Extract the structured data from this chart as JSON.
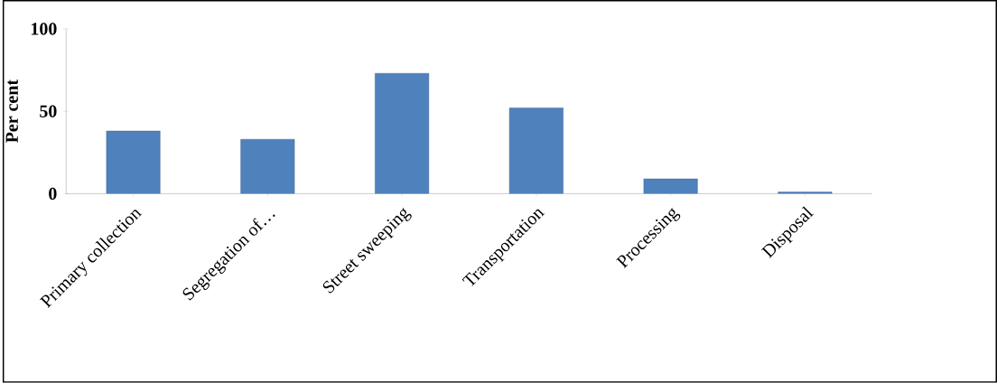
{
  "chart_data": {
    "type": "bar",
    "ylabel": "Per cent",
    "categories": [
      "Primary collection",
      "Segregation of…",
      "Street sweeping",
      "Transportation",
      "Processing",
      "Disposal"
    ],
    "values": [
      38,
      33,
      73,
      52,
      9,
      1
    ],
    "color": "#4f81bd",
    "ylim": [
      0,
      100
    ],
    "yticks": [
      0,
      50,
      100
    ],
    "grid": false
  }
}
